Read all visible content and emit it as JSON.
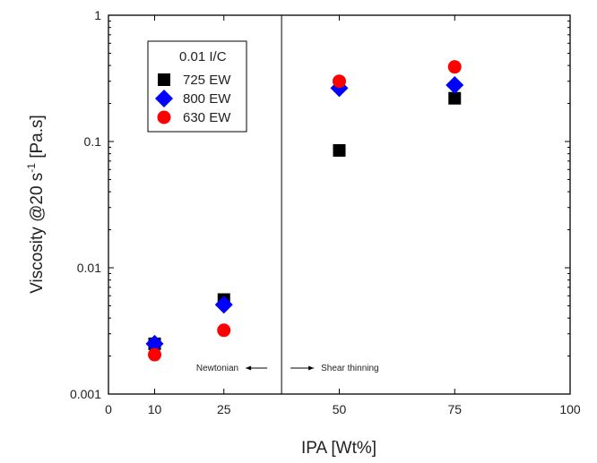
{
  "chart_data": {
    "type": "scatter",
    "xlabel": "IPA [Wt%]",
    "ylabel": "Viscosity @20 s",
    "ylabel_superscript": "-1",
    "ylabel_suffix": " [Pa.s]",
    "xlim": [
      0,
      100
    ],
    "ylim": [
      0.001,
      1
    ],
    "y_scale": "log",
    "x_ticks": [
      0,
      10,
      25,
      50,
      75,
      100
    ],
    "x_tick_labels": [
      "0",
      "10",
      "25",
      "50",
      "75",
      "100"
    ],
    "y_ticks": [
      0.001,
      0.01,
      0.1,
      1
    ],
    "y_tick_labels": [
      "0.001",
      "0.01",
      "0.1",
      "1"
    ],
    "grid": false,
    "legend": {
      "title": "0.01 I/C",
      "placement": "top-left"
    },
    "series": [
      {
        "name": "725 EW",
        "marker": "square",
        "color": "#000000",
        "points": [
          {
            "x": 10,
            "y": 0.0025
          },
          {
            "x": 25,
            "y": 0.0056
          },
          {
            "x": 50,
            "y": 0.085
          },
          {
            "x": 75,
            "y": 0.22
          }
        ]
      },
      {
        "name": "800 EW",
        "marker": "diamond",
        "color": "#0000ff",
        "points": [
          {
            "x": 10,
            "y": 0.0025
          },
          {
            "x": 25,
            "y": 0.0051
          },
          {
            "x": 50,
            "y": 0.265
          },
          {
            "x": 75,
            "y": 0.28
          }
        ]
      },
      {
        "name": "630 EW",
        "marker": "circle",
        "color": "#ff0000",
        "points": [
          {
            "x": 10,
            "y": 0.00205
          },
          {
            "x": 25,
            "y": 0.0032
          },
          {
            "x": 50,
            "y": 0.3
          },
          {
            "x": 75,
            "y": 0.39
          }
        ]
      }
    ],
    "reference_line": {
      "x": 37.5
    },
    "annotations": [
      {
        "text": "Newtonian",
        "arrow": "left"
      },
      {
        "text": "Shear thinning",
        "arrow": "right"
      }
    ]
  }
}
